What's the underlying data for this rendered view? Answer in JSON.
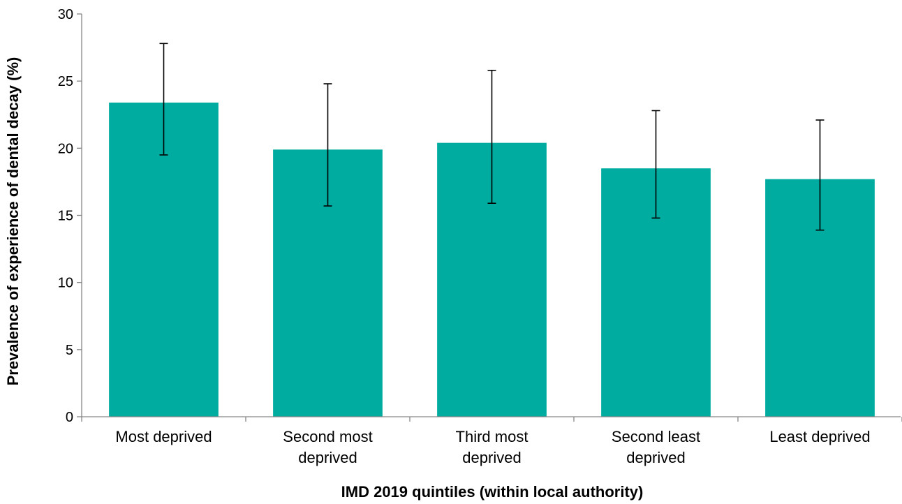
{
  "chart_data": {
    "type": "bar",
    "categories": [
      [
        "Most deprived"
      ],
      [
        "Second most",
        "deprived"
      ],
      [
        "Third most",
        "deprived"
      ],
      [
        "Second least",
        "deprived"
      ],
      [
        "Least deprived"
      ]
    ],
    "values": [
      23.4,
      19.9,
      20.4,
      18.5,
      17.7
    ],
    "error_low": [
      19.5,
      15.7,
      15.9,
      14.8,
      13.9
    ],
    "error_high": [
      27.8,
      24.8,
      25.8,
      22.8,
      22.1
    ],
    "xlabel": "IMD 2019 quintiles (within local authority)",
    "ylabel": "Prevalence of experience of dental decay (%)",
    "ylim": [
      0,
      30
    ],
    "yticks": [
      "0",
      "5",
      "10",
      "15",
      "20",
      "25",
      "30"
    ],
    "grid": false,
    "legend": "none",
    "bar_color": "#00AC9F",
    "error_bar_color": "#000000",
    "axis_color": "#868686"
  }
}
